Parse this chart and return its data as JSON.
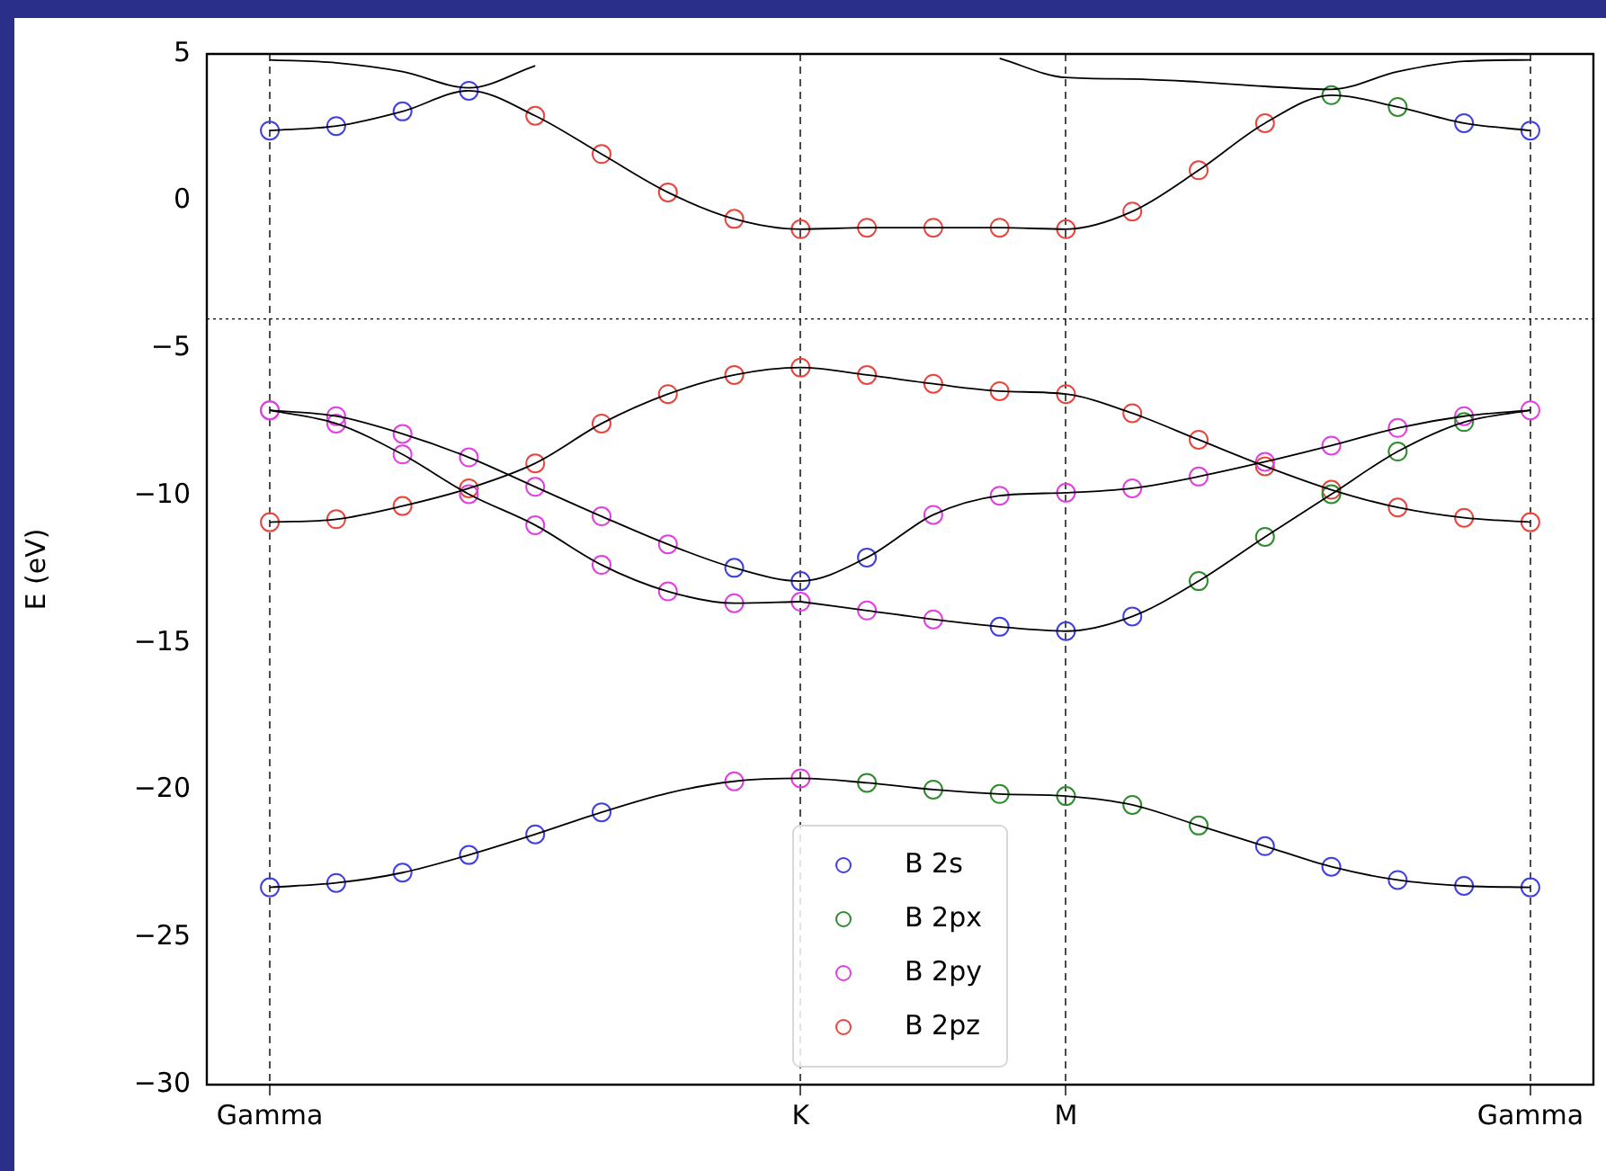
{
  "chart_data": {
    "type": "line",
    "ylabel": "E (eV)",
    "categories": [
      "Gamma",
      null,
      null,
      null,
      null,
      null,
      null,
      null,
      "K",
      null,
      null,
      null,
      "M",
      null,
      null,
      null,
      null,
      null,
      null,
      "Gamma"
    ],
    "ylim": [
      -30,
      5
    ],
    "yticks": [
      5,
      0,
      -5,
      -10,
      -15,
      -20,
      -25,
      -30
    ],
    "grid": "x",
    "legend": "bottom",
    "marker": "circle",
    "line_style": "solid",
    "ref_lines": [
      {
        "axis": "y",
        "value": -4,
        "color": "#000000",
        "line_style": "dotted"
      }
    ],
    "series": [
      {
        "type": "scatter",
        "name": "B 2s",
        "color": "#4040e0",
        "values": [
          -23.3,
          -23.15,
          -22.8,
          -22.2,
          -21.5,
          -20.75,
          null,
          -12.45,
          -12.9,
          -12.1,
          null,
          -14.45,
          -14.6,
          -14.1,
          null,
          -21.9,
          -22.6,
          -23.05,
          -23.25,
          -23.3
        ]
      },
      {
        "type": "scatter",
        "color": "#4040e0",
        "values": [
          2.4,
          2.55,
          3.05,
          3.75,
          null,
          null,
          null,
          null,
          null,
          null,
          null,
          null,
          null,
          null,
          null,
          null,
          null,
          null,
          2.65,
          2.4
        ]
      },
      {
        "type": "scatter",
        "name": "B 2px",
        "color": "#2e8b2e",
        "values": [
          null,
          null,
          null,
          null,
          null,
          null,
          null,
          null,
          null,
          -19.75,
          -19.98,
          -20.13,
          -20.2,
          -20.5,
          -21.2,
          null,
          3.6,
          3.2,
          null,
          null
        ]
      },
      {
        "type": "scatter",
        "color": "#2e8b2e",
        "values": [
          null,
          null,
          null,
          null,
          null,
          null,
          null,
          null,
          null,
          null,
          null,
          null,
          null,
          null,
          -12.9,
          -11.4,
          -9.95,
          -8.5,
          -7.5,
          null
        ]
      },
      {
        "type": "scatter",
        "name": "B 2py",
        "color": "#e040e0",
        "values": [
          -7.1,
          -7.55,
          -8.6,
          -9.95,
          -11.0,
          -12.35,
          -13.25,
          -13.65,
          -13.6,
          -13.9,
          -14.2,
          null,
          null,
          null,
          null,
          null,
          null,
          null,
          null,
          null
        ]
      },
      {
        "type": "scatter",
        "color": "#e040e0",
        "values": [
          -7.1,
          -7.3,
          -7.9,
          -8.7,
          -9.7,
          -10.7,
          -11.65,
          -19.7,
          -19.6,
          null,
          -10.65,
          -10.0,
          -9.9,
          -9.75,
          -9.35,
          -8.85,
          -8.3,
          -7.7,
          -7.3,
          -7.1
        ]
      },
      {
        "type": "scatter",
        "name": "B 2pz",
        "color": "#e8453c",
        "values": [
          -10.9,
          -10.8,
          -10.35,
          -9.75,
          -8.9,
          -7.55,
          -6.55,
          -5.9,
          -5.65,
          -5.9,
          -6.2,
          -6.45,
          -6.55,
          -7.2,
          -8.1,
          -9.0,
          -9.8,
          -10.4,
          -10.75,
          -10.9
        ]
      },
      {
        "type": "scatter",
        "color": "#e8453c",
        "values": [
          null,
          null,
          null,
          null,
          2.9,
          1.6,
          0.3,
          -0.6,
          -0.95,
          -0.9,
          -0.9,
          -0.9,
          -0.95,
          -0.35,
          1.05,
          2.65,
          null,
          null,
          null,
          null
        ]
      },
      {
        "color": "#000000",
        "marker": "none",
        "values": [
          -23.3,
          -23.15,
          -22.8,
          -22.2,
          -21.5,
          -20.75,
          -20.1,
          -19.7,
          -19.6,
          -19.75,
          -19.98,
          -20.13,
          -20.2,
          -20.5,
          -21.2,
          -21.9,
          -22.6,
          -23.05,
          -23.25,
          -23.3
        ]
      },
      {
        "color": "#000000",
        "marker": "none",
        "values": [
          -7.1,
          -7.55,
          -8.6,
          -9.95,
          -11.0,
          -12.35,
          -13.25,
          -13.65,
          -13.6,
          null,
          null,
          null,
          null,
          null,
          null,
          null,
          null,
          null,
          null,
          null
        ]
      },
      {
        "color": "#000000",
        "marker": "none",
        "values": [
          null,
          null,
          null,
          null,
          null,
          null,
          null,
          null,
          -13.6,
          -13.9,
          -14.2,
          -14.45,
          -14.6,
          -14.1,
          -12.9,
          -11.4,
          -9.95,
          -8.5,
          -7.5,
          -7.1
        ]
      },
      {
        "color": "#000000",
        "marker": "none",
        "values": [
          -7.1,
          -7.3,
          -7.9,
          -8.7,
          -9.7,
          -10.7,
          -11.65,
          -12.45,
          -12.9,
          -12.1,
          -10.65,
          -10.0,
          -9.9,
          -9.75,
          -9.35,
          -8.85,
          -8.3,
          -7.7,
          -7.3,
          -7.1
        ]
      },
      {
        "color": "#000000",
        "marker": "none",
        "values": [
          -10.9,
          -10.8,
          -10.35,
          -9.75,
          -8.9,
          -7.55,
          -6.55,
          -5.9,
          -5.65,
          -5.9,
          -6.2,
          -6.45,
          -6.55,
          -7.2,
          -8.1,
          -9.0,
          -9.8,
          -10.4,
          -10.75,
          -10.9
        ]
      },
      {
        "color": "#000000",
        "marker": "none",
        "values": [
          2.4,
          2.55,
          3.05,
          3.75,
          2.9,
          1.6,
          0.3,
          -0.6,
          -0.95,
          -0.9,
          -0.9,
          -0.9,
          -0.95,
          -0.35,
          1.05,
          2.65,
          3.6,
          3.2,
          2.65,
          2.4
        ]
      },
      {
        "color": "#000000",
        "marker": "none",
        "values": [
          4.8,
          4.7,
          4.4,
          3.85,
          4.6,
          null,
          null,
          null,
          null,
          null,
          null,
          4.85,
          4.2,
          4.15,
          4.05,
          3.9,
          3.8,
          4.4,
          4.75,
          4.8
        ]
      }
    ]
  }
}
